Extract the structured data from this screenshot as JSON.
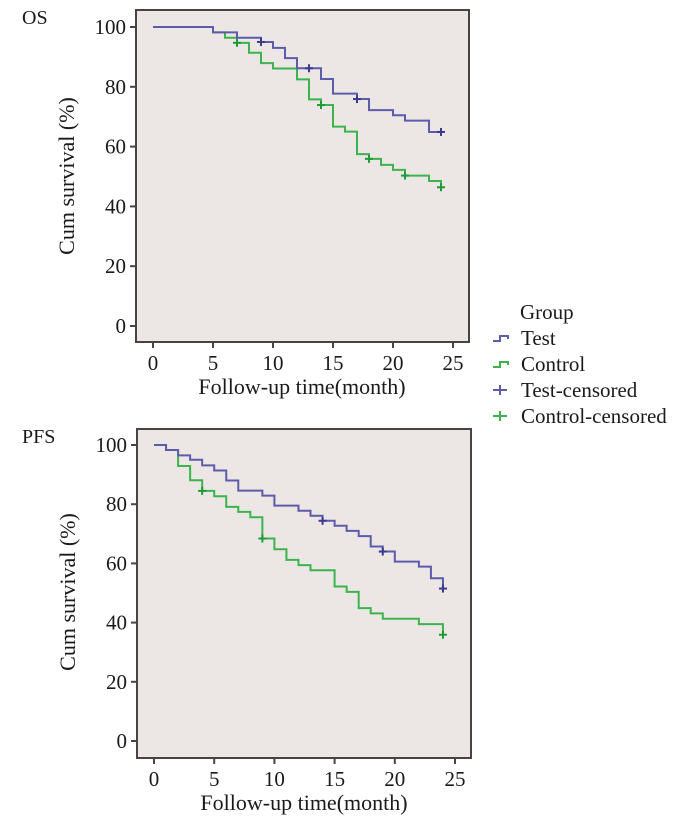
{
  "colors": {
    "test": "#5d5cab",
    "control": "#3db34d",
    "test_censor": "#3a3a8c",
    "control_censor": "#1e9a3b",
    "plot_background": "#ece7e5",
    "frame": "#4a4440"
  },
  "legend": {
    "title": "Group",
    "placement": "right",
    "items": [
      {
        "label": "Test",
        "kind": "line",
        "series": "test"
      },
      {
        "label": "Control",
        "kind": "line",
        "series": "control"
      },
      {
        "label": "Test-censored",
        "kind": "censor",
        "series": "test"
      },
      {
        "label": "Control-censored",
        "kind": "censor",
        "series": "control"
      }
    ]
  },
  "chart_data": [
    {
      "type": "line",
      "subtype": "kaplan-meier step",
      "title": "OS",
      "xlabel": "Follow-up time(month)",
      "ylabel": "Cum survival (%)",
      "xlim": [
        0,
        25
      ],
      "ylim": [
        0,
        100
      ],
      "xticks": [
        "0",
        "5",
        "10",
        "15",
        "20",
        "25"
      ],
      "yticks": [
        "0",
        "20",
        "40",
        "60",
        "80",
        "100"
      ],
      "grid": false,
      "series": [
        {
          "name": "Test",
          "key": "test",
          "steps": [
            [
              0,
              100
            ],
            [
              5,
              98.2
            ],
            [
              7,
              96.4
            ],
            [
              9,
              95
            ],
            [
              10,
              93
            ],
            [
              11,
              89.6
            ],
            [
              12,
              86.2
            ],
            [
              14,
              82.6
            ],
            [
              15,
              77.7
            ],
            [
              17,
              75.9
            ],
            [
              18,
              72.2
            ],
            [
              20,
              70.5
            ],
            [
              21,
              68.7
            ],
            [
              23,
              64.9
            ],
            [
              24,
              64.9
            ]
          ],
          "censored": [
            [
              9,
              95
            ],
            [
              13,
              86.2
            ],
            [
              17,
              75.9
            ],
            [
              24,
              64.9
            ]
          ]
        },
        {
          "name": "Control",
          "key": "control",
          "steps": [
            [
              0,
              100
            ],
            [
              5,
              98.2
            ],
            [
              6,
              96.4
            ],
            [
              7,
              94.7
            ],
            [
              8,
              91.4
            ],
            [
              9,
              87.9
            ],
            [
              10,
              86.1
            ],
            [
              12,
              82.5
            ],
            [
              13,
              75.8
            ],
            [
              14,
              73.9
            ],
            [
              15,
              66.7
            ],
            [
              16,
              65
            ],
            [
              17,
              57.5
            ],
            [
              18,
              55.9
            ],
            [
              19,
              53.9
            ],
            [
              20,
              52.2
            ],
            [
              21,
              50.3
            ],
            [
              23,
              48.5
            ],
            [
              24,
              46.4
            ]
          ],
          "censored": [
            [
              7,
              94.7
            ],
            [
              14,
              73.9
            ],
            [
              18,
              55.9
            ],
            [
              21,
              50.3
            ],
            [
              24,
              46.4
            ]
          ]
        }
      ]
    },
    {
      "type": "line",
      "subtype": "kaplan-meier step",
      "title": "PFS",
      "xlabel": "Follow-up time(month)",
      "ylabel": "Cum survival (%)",
      "xlim": [
        0,
        25
      ],
      "ylim": [
        0,
        100
      ],
      "xticks": [
        "0",
        "5",
        "10",
        "15",
        "20",
        "25"
      ],
      "yticks": [
        "0",
        "20",
        "40",
        "60",
        "80",
        "100"
      ],
      "grid": false,
      "series": [
        {
          "name": "Test",
          "key": "test",
          "steps": [
            [
              0,
              100
            ],
            [
              1,
              98.3
            ],
            [
              2,
              96.5
            ],
            [
              3,
              95
            ],
            [
              4,
              93.1
            ],
            [
              5,
              91.4
            ],
            [
              6,
              88
            ],
            [
              7,
              84.6
            ],
            [
              9,
              82.9
            ],
            [
              10,
              79.5
            ],
            [
              12,
              77.8
            ],
            [
              13,
              76.1
            ],
            [
              14,
              74.4
            ],
            [
              15,
              72.7
            ],
            [
              16,
              71
            ],
            [
              17,
              69.2
            ],
            [
              18,
              65.7
            ],
            [
              19,
              64
            ],
            [
              20,
              60.6
            ],
            [
              22,
              58.9
            ],
            [
              23,
              55
            ],
            [
              24,
              51.5
            ]
          ],
          "censored": [
            [
              14,
              74.4
            ],
            [
              19,
              64
            ],
            [
              24,
              51.5
            ]
          ]
        },
        {
          "name": "Control",
          "key": "control",
          "steps": [
            [
              0,
              100
            ],
            [
              1,
              98.3
            ],
            [
              2,
              92.9
            ],
            [
              3,
              88.1
            ],
            [
              4,
              84.5
            ],
            [
              5,
              82.7
            ],
            [
              6,
              79.1
            ],
            [
              7,
              77.4
            ],
            [
              8,
              75.6
            ],
            [
              9,
              68.4
            ],
            [
              10,
              64.8
            ],
            [
              11,
              61.2
            ],
            [
              12,
              59.4
            ],
            [
              13,
              57.7
            ],
            [
              15,
              52.2
            ],
            [
              16,
              50.4
            ],
            [
              17,
              44.9
            ],
            [
              18,
              43.1
            ],
            [
              19,
              41.3
            ],
            [
              22,
              39.5
            ],
            [
              24,
              35.9
            ]
          ],
          "censored": [
            [
              4,
              84.5
            ],
            [
              9,
              68.4
            ],
            [
              24,
              35.9
            ]
          ]
        }
      ]
    }
  ]
}
